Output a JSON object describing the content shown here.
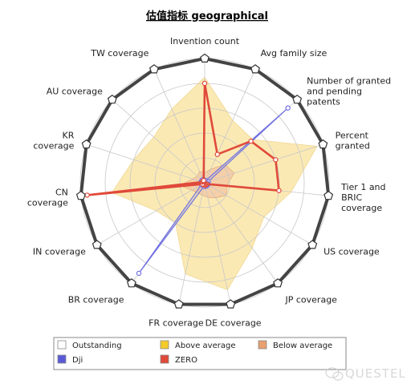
{
  "chart_data": {
    "type": "radar",
    "title": "估值指标 geographical",
    "axes": [
      {
        "label": "Invention count"
      },
      {
        "label": "Avg family size"
      },
      {
        "label": "Number of granted\nand pending\npatents"
      },
      {
        "label": "Percent\ngranted"
      },
      {
        "label": "Tier 1 and\nBRIC\ncoverage"
      },
      {
        "label": "US coverage"
      },
      {
        "label": "JP coverage"
      },
      {
        "label": "DE coverage"
      },
      {
        "label": "FR coverage"
      },
      {
        "label": "BR coverage"
      },
      {
        "label": "IN coverage"
      },
      {
        "label": "CN\ncoverage"
      },
      {
        "label": "KR\ncoverage"
      },
      {
        "label": "AU coverage"
      },
      {
        "label": "TW coverage"
      }
    ],
    "range": [
      0,
      100
    ],
    "grid": true,
    "bands": [
      {
        "name": "Outstanding",
        "color": "#ffffff",
        "values": [
          100,
          100,
          100,
          100,
          100,
          100,
          100,
          100,
          100,
          100,
          100,
          100,
          100,
          100,
          100
        ]
      },
      {
        "name": "Above average",
        "color": "#fbe9b4",
        "values": [
          85,
          55,
          52,
          95,
          70,
          55,
          65,
          88,
          75,
          40,
          45,
          75,
          60,
          55,
          65
        ]
      },
      {
        "name": "Below average",
        "color": "#f5cfa8",
        "values": [
          8,
          12,
          22,
          25,
          18,
          20,
          15,
          12,
          10,
          10,
          12,
          20,
          10,
          8,
          10
        ]
      }
    ],
    "series": [
      {
        "name": "Dji",
        "color": "#7070e0",
        "values": [
          2,
          2,
          90,
          3,
          2,
          3,
          3,
          3,
          3,
          90,
          3,
          2,
          3,
          3,
          3
        ]
      },
      {
        "name": "ZERO",
        "color": "#e04a3a",
        "values": [
          80,
          25,
          50,
          60,
          60,
          2,
          2,
          2,
          2,
          2,
          2,
          95,
          2,
          2,
          2
        ]
      }
    ],
    "legend": {
      "placement": "bottom",
      "items": [
        {
          "label": "Outstanding",
          "color": "#ffffff"
        },
        {
          "label": "Above average",
          "color": "#f4cc2a"
        },
        {
          "label": "Below average",
          "color": "#e8a070"
        },
        {
          "label": "Dji",
          "color": "#5a5ad8"
        },
        {
          "label": "ZERO",
          "color": "#e04a3a"
        }
      ]
    }
  },
  "watermark": "QUESTEL",
  "watermark_icon": "wechat-icon"
}
